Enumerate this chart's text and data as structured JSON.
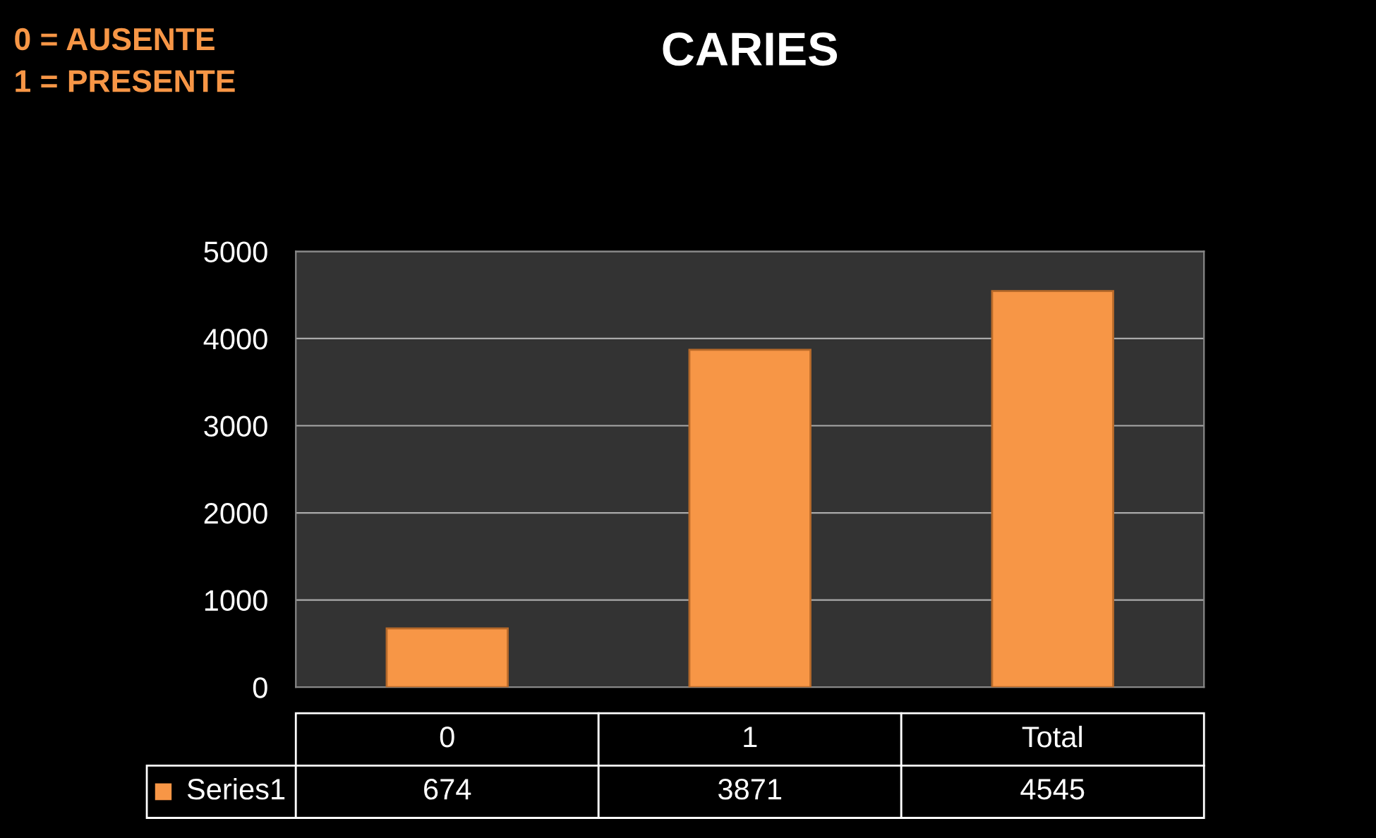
{
  "chart_data": {
    "type": "bar",
    "title": "CARIES",
    "annotations": [
      "0 = AUSENTE",
      "1 = PRESENTE"
    ],
    "categories": [
      "0",
      "1",
      "Total"
    ],
    "series": [
      {
        "name": "Series1",
        "color": "#f79646",
        "values": [
          674,
          3871,
          4545
        ]
      }
    ],
    "ylim": [
      0,
      5000
    ],
    "yticks": [
      0,
      1000,
      2000,
      3000,
      4000,
      5000
    ],
    "grid": "y",
    "data_labels": true
  }
}
